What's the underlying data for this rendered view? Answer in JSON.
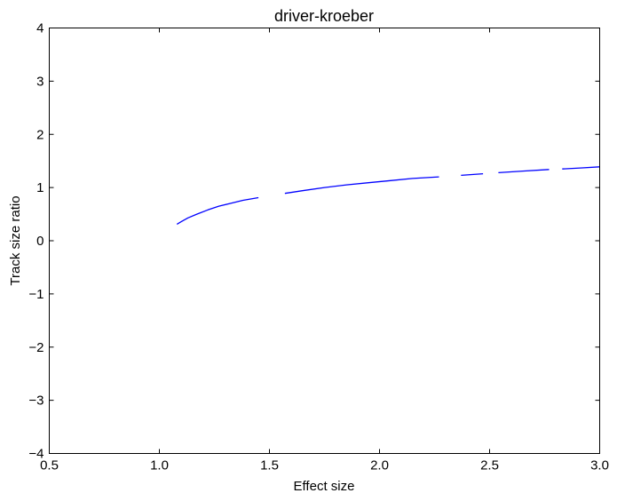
{
  "chart_data": {
    "type": "line",
    "title": "driver-kroeber",
    "xlabel": "Effect size",
    "ylabel": "Track size ratio",
    "xlim": [
      0.5,
      3.0
    ],
    "ylim": [
      -4,
      4
    ],
    "xticks": [
      "0.5",
      "1.0",
      "1.5",
      "2.0",
      "2.5",
      "3.0"
    ],
    "yticks": [
      "4",
      "3",
      "2",
      "1",
      "0",
      "−1",
      "−2",
      "−3",
      "−4"
    ],
    "grid": false,
    "series": [
      {
        "color": "#0000ff",
        "segments": [
          {
            "x": [
              1.08,
              1.1,
              1.13,
              1.17,
              1.22,
              1.27,
              1.32,
              1.38,
              1.45
            ],
            "y": [
              0.31,
              0.36,
              0.43,
              0.5,
              0.58,
              0.65,
              0.7,
              0.76,
              0.81
            ]
          },
          {
            "x": [
              1.57,
              1.65,
              1.75,
              1.85,
              1.95,
              2.05,
              2.15,
              2.27
            ],
            "y": [
              0.89,
              0.94,
              1.0,
              1.05,
              1.09,
              1.13,
              1.17,
              1.2
            ]
          },
          {
            "x": [
              2.37,
              2.47
            ],
            "y": [
              1.23,
              1.26
            ]
          },
          {
            "x": [
              2.54,
              2.65,
              2.77
            ],
            "y": [
              1.28,
              1.31,
              1.34
            ]
          },
          {
            "x": [
              2.83,
              2.92,
              3.0
            ],
            "y": [
              1.35,
              1.37,
              1.39
            ]
          }
        ]
      }
    ]
  }
}
